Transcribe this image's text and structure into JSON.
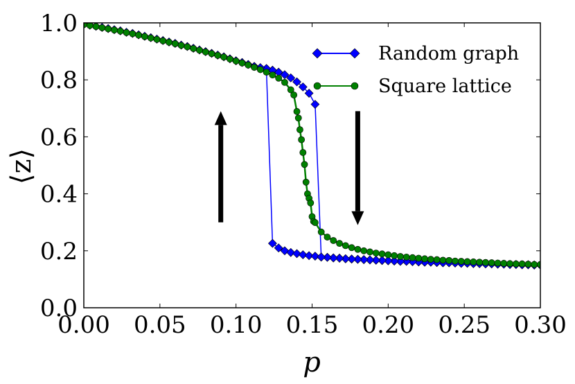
{
  "chart_data": {
    "type": "line",
    "title": "",
    "xlabel": "p",
    "ylabel": "⟨z⟩",
    "xlim": [
      0.0,
      0.3
    ],
    "ylim": [
      0.0,
      1.0
    ],
    "x_ticks": [
      0.0,
      0.05,
      0.1,
      0.15,
      0.2,
      0.25,
      0.3
    ],
    "x_tick_labels": [
      "0.00",
      "0.05",
      "0.10",
      "0.15",
      "0.20",
      "0.25",
      "0.30"
    ],
    "y_ticks": [
      0.0,
      0.2,
      0.4,
      0.6,
      0.8,
      1.0
    ],
    "y_tick_labels": [
      "0.0",
      "0.2",
      "0.4",
      "0.6",
      "0.8",
      "1.0"
    ],
    "grid": false,
    "legend_position": "top-right",
    "series": [
      {
        "name": "Random graph",
        "color": "#0000ff",
        "marker": "diamond",
        "points": [
          [
            0.0,
            0.995
          ],
          [
            0.004,
            0.992
          ],
          [
            0.008,
            0.988
          ],
          [
            0.012,
            0.984
          ],
          [
            0.016,
            0.98
          ],
          [
            0.02,
            0.976
          ],
          [
            0.024,
            0.972
          ],
          [
            0.028,
            0.967
          ],
          [
            0.032,
            0.963
          ],
          [
            0.036,
            0.958
          ],
          [
            0.04,
            0.953
          ],
          [
            0.044,
            0.948
          ],
          [
            0.048,
            0.943
          ],
          [
            0.052,
            0.938
          ],
          [
            0.056,
            0.933
          ],
          [
            0.06,
            0.928
          ],
          [
            0.064,
            0.922
          ],
          [
            0.068,
            0.917
          ],
          [
            0.072,
            0.911
          ],
          [
            0.076,
            0.905
          ],
          [
            0.08,
            0.899
          ],
          [
            0.084,
            0.893
          ],
          [
            0.088,
            0.887
          ],
          [
            0.092,
            0.881
          ],
          [
            0.096,
            0.874
          ],
          [
            0.1,
            0.867
          ],
          [
            0.104,
            0.861
          ],
          [
            0.108,
            0.854
          ],
          [
            0.112,
            0.847
          ],
          [
            0.116,
            0.839
          ],
          [
            0.12,
            0.832
          ],
          [
            0.124,
            0.226
          ],
          [
            0.128,
            0.21
          ],
          [
            0.132,
            0.2
          ],
          [
            0.136,
            0.194
          ],
          [
            0.14,
            0.19
          ],
          [
            0.144,
            0.186
          ],
          [
            0.148,
            0.183
          ],
          [
            0.152,
            0.181
          ],
          [
            0.156,
            0.178
          ],
          [
            0.16,
            0.177
          ],
          [
            0.164,
            0.175
          ],
          [
            0.168,
            0.174
          ],
          [
            0.172,
            0.172
          ],
          [
            0.176,
            0.171
          ],
          [
            0.18,
            0.17
          ],
          [
            0.184,
            0.169
          ],
          [
            0.188,
            0.168
          ],
          [
            0.192,
            0.167
          ],
          [
            0.196,
            0.166
          ],
          [
            0.2,
            0.165
          ],
          [
            0.204,
            0.164
          ],
          [
            0.208,
            0.163
          ],
          [
            0.212,
            0.163
          ],
          [
            0.216,
            0.162
          ],
          [
            0.22,
            0.161
          ],
          [
            0.224,
            0.16
          ],
          [
            0.228,
            0.16
          ],
          [
            0.232,
            0.159
          ],
          [
            0.236,
            0.158
          ],
          [
            0.24,
            0.158
          ],
          [
            0.244,
            0.157
          ],
          [
            0.248,
            0.156
          ],
          [
            0.252,
            0.156
          ],
          [
            0.256,
            0.155
          ],
          [
            0.26,
            0.155
          ],
          [
            0.264,
            0.154
          ],
          [
            0.268,
            0.154
          ],
          [
            0.272,
            0.153
          ],
          [
            0.276,
            0.153
          ],
          [
            0.28,
            0.152
          ],
          [
            0.284,
            0.152
          ],
          [
            0.288,
            0.151
          ],
          [
            0.292,
            0.151
          ],
          [
            0.296,
            0.15
          ],
          [
            0.3,
            0.15
          ],
          [
            0.3,
            0.15
          ],
          [
            0.296,
            0.15
          ],
          [
            0.292,
            0.151
          ],
          [
            0.288,
            0.151
          ],
          [
            0.284,
            0.152
          ],
          [
            0.28,
            0.152
          ],
          [
            0.276,
            0.153
          ],
          [
            0.272,
            0.153
          ],
          [
            0.268,
            0.154
          ],
          [
            0.264,
            0.154
          ],
          [
            0.26,
            0.155
          ],
          [
            0.256,
            0.155
          ],
          [
            0.252,
            0.156
          ],
          [
            0.248,
            0.156
          ],
          [
            0.244,
            0.157
          ],
          [
            0.24,
            0.158
          ],
          [
            0.236,
            0.158
          ],
          [
            0.232,
            0.159
          ],
          [
            0.228,
            0.16
          ],
          [
            0.224,
            0.16
          ],
          [
            0.22,
            0.161
          ],
          [
            0.216,
            0.162
          ],
          [
            0.212,
            0.163
          ],
          [
            0.208,
            0.163
          ],
          [
            0.204,
            0.164
          ],
          [
            0.2,
            0.165
          ],
          [
            0.196,
            0.166
          ],
          [
            0.192,
            0.167
          ],
          [
            0.188,
            0.168
          ],
          [
            0.184,
            0.169
          ],
          [
            0.18,
            0.17
          ],
          [
            0.176,
            0.171
          ],
          [
            0.172,
            0.172
          ],
          [
            0.168,
            0.174
          ],
          [
            0.164,
            0.175
          ],
          [
            0.16,
            0.177
          ],
          [
            0.156,
            0.178
          ],
          [
            0.152,
            0.714
          ],
          [
            0.148,
            0.753
          ],
          [
            0.144,
            0.775
          ],
          [
            0.14,
            0.793
          ],
          [
            0.136,
            0.807
          ],
          [
            0.132,
            0.818
          ],
          [
            0.128,
            0.827
          ],
          [
            0.124,
            0.834
          ],
          [
            0.12,
            0.84
          ],
          [
            0.116,
            0.843
          ],
          [
            0.112,
            0.847
          ]
        ]
      },
      {
        "name": "Square lattice",
        "color": "#008000",
        "marker": "circle",
        "points": [
          [
            0.0,
            0.994
          ],
          [
            0.004,
            0.991
          ],
          [
            0.008,
            0.987
          ],
          [
            0.012,
            0.983
          ],
          [
            0.016,
            0.979
          ],
          [
            0.02,
            0.975
          ],
          [
            0.024,
            0.971
          ],
          [
            0.028,
            0.966
          ],
          [
            0.032,
            0.962
          ],
          [
            0.036,
            0.957
          ],
          [
            0.04,
            0.952
          ],
          [
            0.044,
            0.947
          ],
          [
            0.048,
            0.942
          ],
          [
            0.052,
            0.937
          ],
          [
            0.056,
            0.932
          ],
          [
            0.06,
            0.927
          ],
          [
            0.064,
            0.921
          ],
          [
            0.068,
            0.916
          ],
          [
            0.072,
            0.91
          ],
          [
            0.076,
            0.904
          ],
          [
            0.08,
            0.898
          ],
          [
            0.084,
            0.892
          ],
          [
            0.088,
            0.886
          ],
          [
            0.092,
            0.88
          ],
          [
            0.096,
            0.873
          ],
          [
            0.1,
            0.866
          ],
          [
            0.104,
            0.859
          ],
          [
            0.108,
            0.852
          ],
          [
            0.112,
            0.844
          ],
          [
            0.116,
            0.836
          ],
          [
            0.12,
            0.827
          ],
          [
            0.124,
            0.817
          ],
          [
            0.128,
            0.806
          ],
          [
            0.132,
            0.791
          ],
          [
            0.136,
            0.765
          ],
          [
            0.138,
            0.747
          ],
          [
            0.14,
            0.689
          ],
          [
            0.141,
            0.666
          ],
          [
            0.142,
            0.625
          ],
          [
            0.143,
            0.59
          ],
          [
            0.144,
            0.545
          ],
          [
            0.145,
            0.503
          ],
          [
            0.146,
            0.441
          ],
          [
            0.147,
            0.4
          ],
          [
            0.148,
            0.384
          ],
          [
            0.149,
            0.368
          ],
          [
            0.15,
            0.32
          ],
          [
            0.151,
            0.303
          ],
          [
            0.152,
            0.299
          ],
          [
            0.156,
            0.266
          ],
          [
            0.16,
            0.248
          ],
          [
            0.164,
            0.236
          ],
          [
            0.168,
            0.226
          ],
          [
            0.172,
            0.218
          ],
          [
            0.176,
            0.211
          ],
          [
            0.18,
            0.205
          ],
          [
            0.184,
            0.2
          ],
          [
            0.188,
            0.196
          ],
          [
            0.192,
            0.192
          ],
          [
            0.196,
            0.189
          ],
          [
            0.2,
            0.186
          ],
          [
            0.204,
            0.183
          ],
          [
            0.208,
            0.18
          ],
          [
            0.212,
            0.178
          ],
          [
            0.216,
            0.176
          ],
          [
            0.22,
            0.174
          ],
          [
            0.224,
            0.172
          ],
          [
            0.228,
            0.17
          ],
          [
            0.232,
            0.169
          ],
          [
            0.236,
            0.167
          ],
          [
            0.24,
            0.166
          ],
          [
            0.244,
            0.164
          ],
          [
            0.248,
            0.163
          ],
          [
            0.252,
            0.162
          ],
          [
            0.256,
            0.161
          ],
          [
            0.26,
            0.16
          ],
          [
            0.264,
            0.159
          ],
          [
            0.268,
            0.158
          ],
          [
            0.272,
            0.157
          ],
          [
            0.276,
            0.156
          ],
          [
            0.28,
            0.155
          ],
          [
            0.284,
            0.154
          ],
          [
            0.288,
            0.154
          ],
          [
            0.292,
            0.153
          ],
          [
            0.296,
            0.152
          ],
          [
            0.3,
            0.152
          ]
        ]
      }
    ],
    "annotations": [
      {
        "type": "arrow",
        "direction": "up",
        "x": 0.09,
        "y_from": 0.3,
        "y_to": 0.69,
        "color": "#000000"
      },
      {
        "type": "arrow",
        "direction": "down",
        "x": 0.18,
        "y_from": 0.69,
        "y_to": 0.29,
        "color": "#000000"
      }
    ]
  }
}
